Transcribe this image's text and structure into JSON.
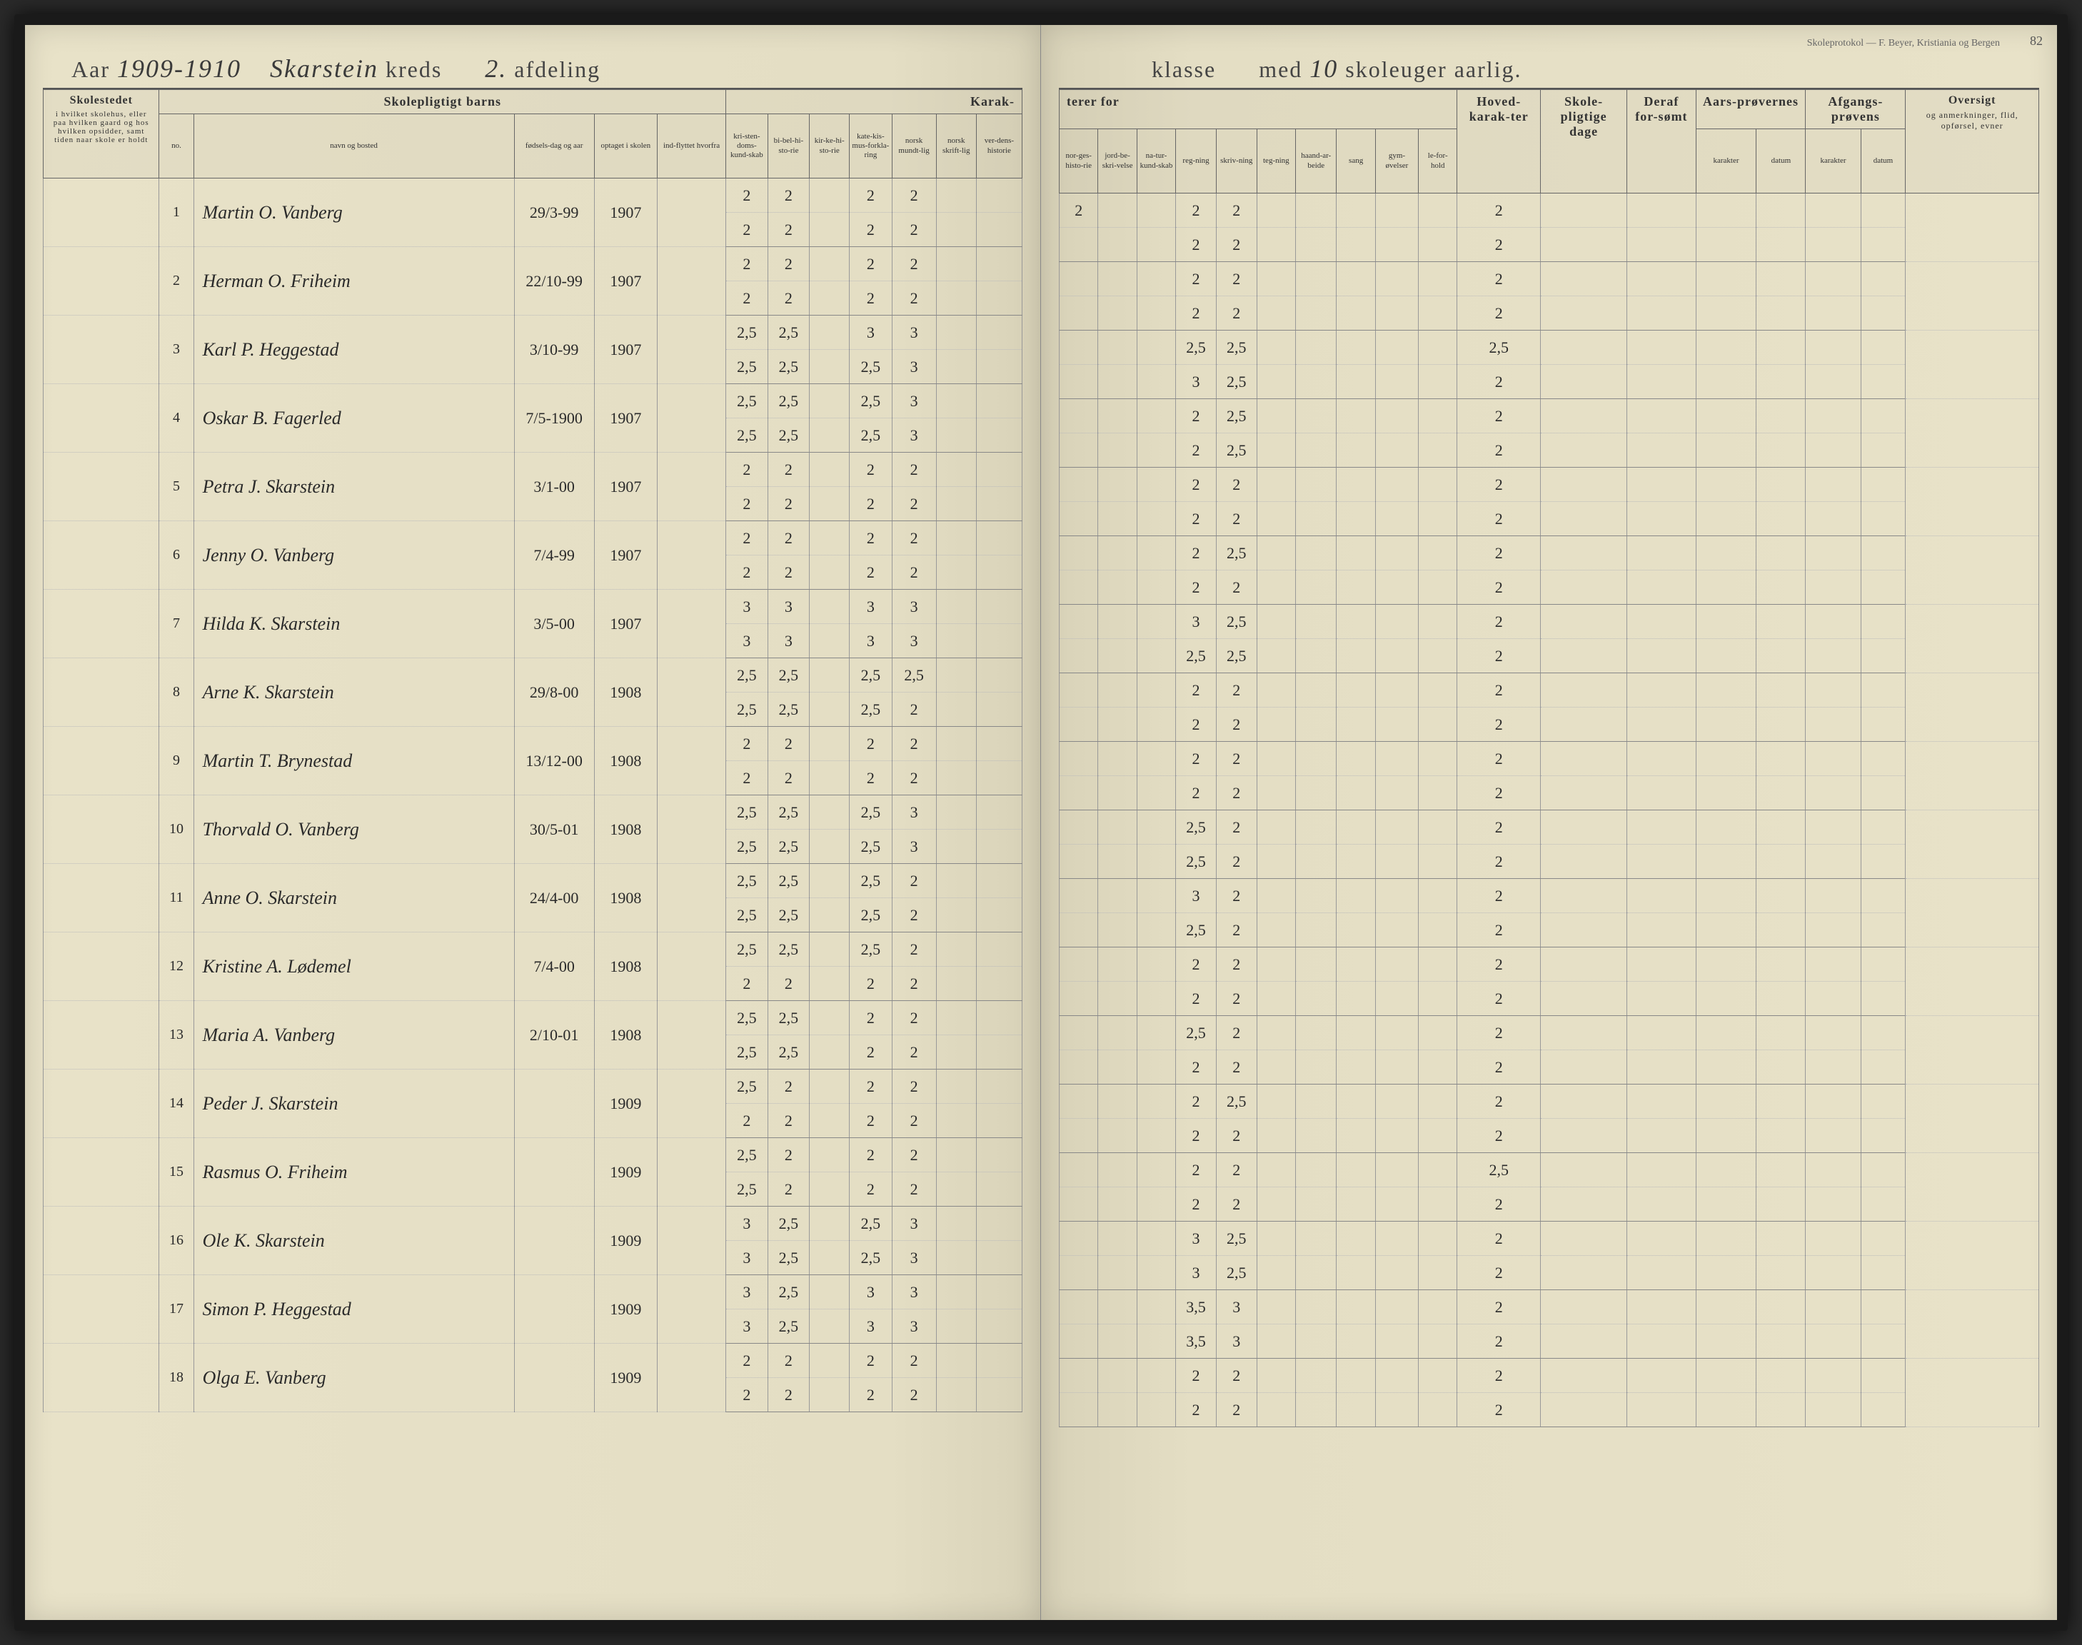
{
  "protocol_note": "Skoleprotokol — F. Beyer, Kristiania og Bergen",
  "page_number": "82",
  "header": {
    "aar_label": "Aar",
    "aar_value": "1909-1910",
    "kreds_value": "Skarstein",
    "kreds_label": "kreds",
    "afdeling_value": "2.",
    "afdeling_label": "afdeling",
    "klasse_label": "klasse",
    "med_label": "med",
    "uger_value": "10",
    "uger_label": "skoleuger aarlig."
  },
  "columns_left": {
    "skolestedet": "Skolestedet",
    "skolestedet_sub": "i hvilket skolehus, eller paa hvilken gaard og hos hvilken opsidder, samt tiden naar skole er holdt",
    "barns": "Skolepligtigt barns",
    "no": "no.",
    "navn": "navn og bosted",
    "fodsels": "fødsels-dag og aar",
    "optaget": "optaget i skolen",
    "flyttet": "ind-flyttet hvorfra",
    "karak": "Karak-",
    "g1": "kri-sten-doms-kund-skab",
    "g2": "bi-bel-hi-sto-rie",
    "g3": "kir-ke-hi-sto-rie",
    "g4": "kate-kis-mus-forkla-ring",
    "g5": "norsk mundt-lig",
    "g6": "norsk skrift-lig",
    "g7": "ver-dens-historie"
  },
  "columns_right": {
    "terer": "terer for",
    "r1": "nor-ges-histo-rie",
    "r2": "jord-be-skri-velse",
    "r3": "na-tur-kund-skab",
    "r4": "reg-ning",
    "r5": "skriv-ning",
    "r6": "teg-ning",
    "r7": "haand-ar-beide",
    "r8": "sang",
    "r9": "gym-øvelser",
    "r10": "le-for-hold",
    "hoved": "Hoved-karak-ter",
    "skole": "Skole-pligtige dage",
    "deraf": "Deraf for-sømt",
    "aars": "Aars-prøvernes",
    "afgangs": "Afgangs-prøvens",
    "karakter": "karakter",
    "datum": "datum",
    "oversigt": "Oversigt",
    "oversigt_sub": "og anmerkninger, flid, opførsel, evner"
  },
  "students": [
    {
      "no": "1",
      "name": "Martin O. Vanberg",
      "dob": "29/3-99",
      "year": "1907",
      "row1": [
        "2",
        "2",
        "",
        "2",
        "2",
        "",
        ""
      ],
      "row2": [
        "2",
        "2",
        "",
        "2",
        "2",
        "",
        ""
      ],
      "right1": [
        "2",
        "",
        "",
        "2",
        "2",
        "",
        "",
        "",
        "",
        ""
      ],
      "right2": [
        "",
        "",
        "",
        "2",
        "2",
        "",
        "",
        "",
        "",
        ""
      ],
      "hk1": "2",
      "hk2": "2"
    },
    {
      "no": "2",
      "name": "Herman O. Friheim",
      "dob": "22/10-99",
      "year": "1907",
      "row1": [
        "2",
        "2",
        "",
        "2",
        "2",
        "",
        ""
      ],
      "row2": [
        "2",
        "2",
        "",
        "2",
        "2",
        "",
        ""
      ],
      "right1": [
        "",
        "",
        "",
        "2",
        "2",
        "",
        "",
        "",
        "",
        ""
      ],
      "right2": [
        "",
        "",
        "",
        "2",
        "2",
        "",
        "",
        "",
        "",
        ""
      ],
      "hk1": "2",
      "hk2": "2"
    },
    {
      "no": "3",
      "name": "Karl P. Heggestad",
      "dob": "3/10-99",
      "year": "1907",
      "row1": [
        "2,5",
        "2,5",
        "",
        "3",
        "3",
        "",
        ""
      ],
      "row2": [
        "2,5",
        "2,5",
        "",
        "2,5",
        "3",
        "",
        ""
      ],
      "right1": [
        "",
        "",
        "",
        "2,5",
        "2,5",
        "",
        "",
        "",
        "",
        ""
      ],
      "right2": [
        "",
        "",
        "",
        "3",
        "2,5",
        "",
        "",
        "",
        "",
        ""
      ],
      "hk1": "2,5",
      "hk2": "2"
    },
    {
      "no": "4",
      "name": "Oskar B. Fagerled",
      "dob": "7/5-1900",
      "year": "1907",
      "row1": [
        "2,5",
        "2,5",
        "",
        "2,5",
        "3",
        "",
        ""
      ],
      "row2": [
        "2,5",
        "2,5",
        "",
        "2,5",
        "3",
        "",
        ""
      ],
      "right1": [
        "",
        "",
        "",
        "2",
        "2,5",
        "",
        "",
        "",
        "",
        ""
      ],
      "right2": [
        "",
        "",
        "",
        "2",
        "2,5",
        "",
        "",
        "",
        "",
        ""
      ],
      "hk1": "2",
      "hk2": "2"
    },
    {
      "no": "5",
      "name": "Petra J. Skarstein",
      "dob": "3/1-00",
      "year": "1907",
      "row1": [
        "2",
        "2",
        "",
        "2",
        "2",
        "",
        ""
      ],
      "row2": [
        "2",
        "2",
        "",
        "2",
        "2",
        "",
        ""
      ],
      "right1": [
        "",
        "",
        "",
        "2",
        "2",
        "",
        "",
        "",
        "",
        ""
      ],
      "right2": [
        "",
        "",
        "",
        "2",
        "2",
        "",
        "",
        "",
        "",
        ""
      ],
      "hk1": "2",
      "hk2": "2"
    },
    {
      "no": "6",
      "name": "Jenny O. Vanberg",
      "dob": "7/4-99",
      "year": "1907",
      "row1": [
        "2",
        "2",
        "",
        "2",
        "2",
        "",
        ""
      ],
      "row2": [
        "2",
        "2",
        "",
        "2",
        "2",
        "",
        ""
      ],
      "right1": [
        "",
        "",
        "",
        "2",
        "2,5",
        "",
        "",
        "",
        "",
        ""
      ],
      "right2": [
        "",
        "",
        "",
        "2",
        "2",
        "",
        "",
        "",
        "",
        ""
      ],
      "hk1": "2",
      "hk2": "2"
    },
    {
      "no": "7",
      "name": "Hilda K. Skarstein",
      "dob": "3/5-00",
      "year": "1907",
      "row1": [
        "3",
        "3",
        "",
        "3",
        "3",
        "",
        ""
      ],
      "row2": [
        "3",
        "3",
        "",
        "3",
        "3",
        "",
        ""
      ],
      "right1": [
        "",
        "",
        "",
        "3",
        "2,5",
        "",
        "",
        "",
        "",
        ""
      ],
      "right2": [
        "",
        "",
        "",
        "2,5",
        "2,5",
        "",
        "",
        "",
        "",
        ""
      ],
      "hk1": "2",
      "hk2": "2"
    },
    {
      "no": "8",
      "name": "Arne K. Skarstein",
      "dob": "29/8-00",
      "year": "1908",
      "row1": [
        "2,5",
        "2,5",
        "",
        "2,5",
        "2,5",
        "",
        ""
      ],
      "row2": [
        "2,5",
        "2,5",
        "",
        "2,5",
        "2",
        "",
        ""
      ],
      "right1": [
        "",
        "",
        "",
        "2",
        "2",
        "",
        "",
        "",
        "",
        ""
      ],
      "right2": [
        "",
        "",
        "",
        "2",
        "2",
        "",
        "",
        "",
        "",
        ""
      ],
      "hk1": "2",
      "hk2": "2"
    },
    {
      "no": "9",
      "name": "Martin T. Brynestad",
      "dob": "13/12-00",
      "year": "1908",
      "row1": [
        "2",
        "2",
        "",
        "2",
        "2",
        "",
        ""
      ],
      "row2": [
        "2",
        "2",
        "",
        "2",
        "2",
        "",
        ""
      ],
      "right1": [
        "",
        "",
        "",
        "2",
        "2",
        "",
        "",
        "",
        "",
        ""
      ],
      "right2": [
        "",
        "",
        "",
        "2",
        "2",
        "",
        "",
        "",
        "",
        ""
      ],
      "hk1": "2",
      "hk2": "2"
    },
    {
      "no": "10",
      "name": "Thorvald O. Vanberg",
      "dob": "30/5-01",
      "year": "1908",
      "row1": [
        "2,5",
        "2,5",
        "",
        "2,5",
        "3",
        "",
        ""
      ],
      "row2": [
        "2,5",
        "2,5",
        "",
        "2,5",
        "3",
        "",
        ""
      ],
      "right1": [
        "",
        "",
        "",
        "2,5",
        "2",
        "",
        "",
        "",
        "",
        ""
      ],
      "right2": [
        "",
        "",
        "",
        "2,5",
        "2",
        "",
        "",
        "",
        "",
        ""
      ],
      "hk1": "2",
      "hk2": "2"
    },
    {
      "no": "11",
      "name": "Anne O. Skarstein",
      "dob": "24/4-00",
      "year": "1908",
      "row1": [
        "2,5",
        "2,5",
        "",
        "2,5",
        "2",
        "",
        ""
      ],
      "row2": [
        "2,5",
        "2,5",
        "",
        "2,5",
        "2",
        "",
        ""
      ],
      "right1": [
        "",
        "",
        "",
        "3",
        "2",
        "",
        "",
        "",
        "",
        ""
      ],
      "right2": [
        "",
        "",
        "",
        "2,5",
        "2",
        "",
        "",
        "",
        "",
        ""
      ],
      "hk1": "2",
      "hk2": "2"
    },
    {
      "no": "12",
      "name": "Kristine A. Lødemel",
      "dob": "7/4-00",
      "year": "1908",
      "row1": [
        "2,5",
        "2,5",
        "",
        "2,5",
        "2",
        "",
        ""
      ],
      "row2": [
        "2",
        "2",
        "",
        "2",
        "2",
        "",
        ""
      ],
      "right1": [
        "",
        "",
        "",
        "2",
        "2",
        "",
        "",
        "",
        "",
        ""
      ],
      "right2": [
        "",
        "",
        "",
        "2",
        "2",
        "",
        "",
        "",
        "",
        ""
      ],
      "hk1": "2",
      "hk2": "2"
    },
    {
      "no": "13",
      "name": "Maria A. Vanberg",
      "dob": "2/10-01",
      "year": "1908",
      "row1": [
        "2,5",
        "2,5",
        "",
        "2",
        "2",
        "",
        ""
      ],
      "row2": [
        "2,5",
        "2,5",
        "",
        "2",
        "2",
        "",
        ""
      ],
      "right1": [
        "",
        "",
        "",
        "2,5",
        "2",
        "",
        "",
        "",
        "",
        ""
      ],
      "right2": [
        "",
        "",
        "",
        "2",
        "2",
        "",
        "",
        "",
        "",
        ""
      ],
      "hk1": "2",
      "hk2": "2"
    },
    {
      "no": "14",
      "name": "Peder J. Skarstein",
      "dob": "",
      "year": "1909",
      "row1": [
        "2,5",
        "2",
        "",
        "2",
        "2",
        "",
        ""
      ],
      "row2": [
        "2",
        "2",
        "",
        "2",
        "2",
        "",
        ""
      ],
      "right1": [
        "",
        "",
        "",
        "2",
        "2,5",
        "",
        "",
        "",
        "",
        ""
      ],
      "right2": [
        "",
        "",
        "",
        "2",
        "2",
        "",
        "",
        "",
        "",
        ""
      ],
      "hk1": "2",
      "hk2": "2"
    },
    {
      "no": "15",
      "name": "Rasmus O. Friheim",
      "dob": "",
      "year": "1909",
      "row1": [
        "2,5",
        "2",
        "",
        "2",
        "2",
        "",
        ""
      ],
      "row2": [
        "2,5",
        "2",
        "",
        "2",
        "2",
        "",
        ""
      ],
      "right1": [
        "",
        "",
        "",
        "2",
        "2",
        "",
        "",
        "",
        "",
        ""
      ],
      "right2": [
        "",
        "",
        "",
        "2",
        "2",
        "",
        "",
        "",
        "",
        ""
      ],
      "hk1": "2,5",
      "hk2": "2"
    },
    {
      "no": "16",
      "name": "Ole K. Skarstein",
      "dob": "",
      "year": "1909",
      "row1": [
        "3",
        "2,5",
        "",
        "2,5",
        "3",
        "",
        ""
      ],
      "row2": [
        "3",
        "2,5",
        "",
        "2,5",
        "3",
        "",
        ""
      ],
      "right1": [
        "",
        "",
        "",
        "3",
        "2,5",
        "",
        "",
        "",
        "",
        ""
      ],
      "right2": [
        "",
        "",
        "",
        "3",
        "2,5",
        "",
        "",
        "",
        "",
        ""
      ],
      "hk1": "2",
      "hk2": "2"
    },
    {
      "no": "17",
      "name": "Simon P. Heggestad",
      "dob": "",
      "year": "1909",
      "row1": [
        "3",
        "2,5",
        "",
        "3",
        "3",
        "",
        ""
      ],
      "row2": [
        "3",
        "2,5",
        "",
        "3",
        "3",
        "",
        ""
      ],
      "right1": [
        "",
        "",
        "",
        "3,5",
        "3",
        "",
        "",
        "",
        "",
        ""
      ],
      "right2": [
        "",
        "",
        "",
        "3,5",
        "3",
        "",
        "",
        "",
        "",
        ""
      ],
      "hk1": "2",
      "hk2": "2"
    },
    {
      "no": "18",
      "name": "Olga E. Vanberg",
      "dob": "",
      "year": "1909",
      "row1": [
        "2",
        "2",
        "",
        "2",
        "2",
        "",
        ""
      ],
      "row2": [
        "2",
        "2",
        "",
        "2",
        "2",
        "",
        ""
      ],
      "right1": [
        "",
        "",
        "",
        "2",
        "2",
        "",
        "",
        "",
        "",
        ""
      ],
      "right2": [
        "",
        "",
        "",
        "2",
        "2",
        "",
        "",
        "",
        "",
        ""
      ],
      "hk1": "2",
      "hk2": "2"
    }
  ],
  "colors": {
    "paper": "#e8e2c8",
    "ink": "#2a2a2a",
    "border": "#666",
    "dotted": "#bbb"
  }
}
